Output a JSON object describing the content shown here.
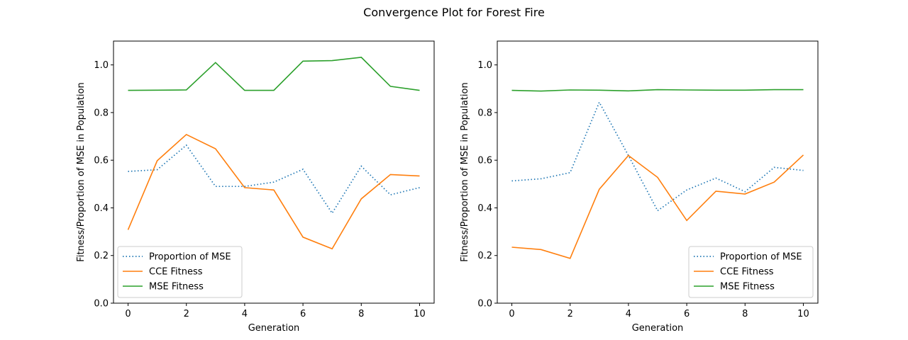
{
  "figure": {
    "suptitle": "Convergence Plot for Forest Fire"
  },
  "colors": {
    "proportion": "#1f77b4",
    "cce": "#ff7f0e",
    "mse": "#2ca02c",
    "axis": "#000000",
    "background": "#ffffff"
  },
  "chart_data": [
    {
      "type": "line",
      "title": "",
      "xlabel": "Generation",
      "ylabel": "Fitness/Proportion of MSE in Population",
      "xlim": [
        -0.5,
        10.5
      ],
      "ylim": [
        0.0,
        1.1
      ],
      "xticks": [
        0,
        2,
        4,
        6,
        8,
        10
      ],
      "yticks": [
        0.0,
        0.2,
        0.4,
        0.6,
        0.8,
        1.0
      ],
      "ytick_labels": [
        "0.0",
        "0.2",
        "0.4",
        "0.6",
        "0.8",
        "1.0"
      ],
      "grid": false,
      "legend_position": "lower-left",
      "x": [
        0,
        1,
        2,
        3,
        4,
        5,
        6,
        7,
        8,
        9,
        10
      ],
      "series": [
        {
          "name": "Proportion of MSE",
          "style": "dotted",
          "values": [
            0.553,
            0.56,
            0.663,
            0.49,
            0.49,
            0.508,
            0.562,
            0.378,
            0.575,
            0.455,
            0.485
          ]
        },
        {
          "name": "CCE Fitness",
          "style": "solid",
          "values": [
            0.308,
            0.598,
            0.708,
            0.648,
            0.485,
            0.475,
            0.277,
            0.228,
            0.438,
            0.54,
            0.534
          ]
        },
        {
          "name": "MSE Fitness",
          "style": "solid",
          "values": [
            0.893,
            0.894,
            0.895,
            1.01,
            0.893,
            0.893,
            1.016,
            1.018,
            1.032,
            0.91,
            0.893
          ]
        }
      ]
    },
    {
      "type": "line",
      "title": "",
      "xlabel": "Generation",
      "ylabel": "Fitness/Proportion of MSE in Population",
      "xlim": [
        -0.5,
        10.5
      ],
      "ylim": [
        0.0,
        1.1
      ],
      "xticks": [
        0,
        2,
        4,
        6,
        8,
        10
      ],
      "yticks": [
        0.0,
        0.2,
        0.4,
        0.6,
        0.8,
        1.0
      ],
      "ytick_labels": [
        "0.0",
        "0.2",
        "0.4",
        "0.6",
        "0.8",
        "1.0"
      ],
      "grid": false,
      "legend_position": "lower-right",
      "x": [
        0,
        1,
        2,
        3,
        4,
        5,
        6,
        7,
        8,
        9,
        10
      ],
      "series": [
        {
          "name": "Proportion of MSE",
          "style": "dotted",
          "values": [
            0.513,
            0.522,
            0.548,
            0.843,
            0.62,
            0.388,
            0.475,
            0.525,
            0.468,
            0.57,
            0.557
          ]
        },
        {
          "name": "CCE Fitness",
          "style": "solid",
          "values": [
            0.235,
            0.225,
            0.188,
            0.478,
            0.62,
            0.528,
            0.347,
            0.47,
            0.458,
            0.508,
            0.622
          ]
        },
        {
          "name": "MSE Fitness",
          "style": "solid",
          "values": [
            0.893,
            0.89,
            0.895,
            0.894,
            0.891,
            0.896,
            0.895,
            0.894,
            0.894,
            0.896,
            0.896
          ]
        }
      ]
    }
  ]
}
